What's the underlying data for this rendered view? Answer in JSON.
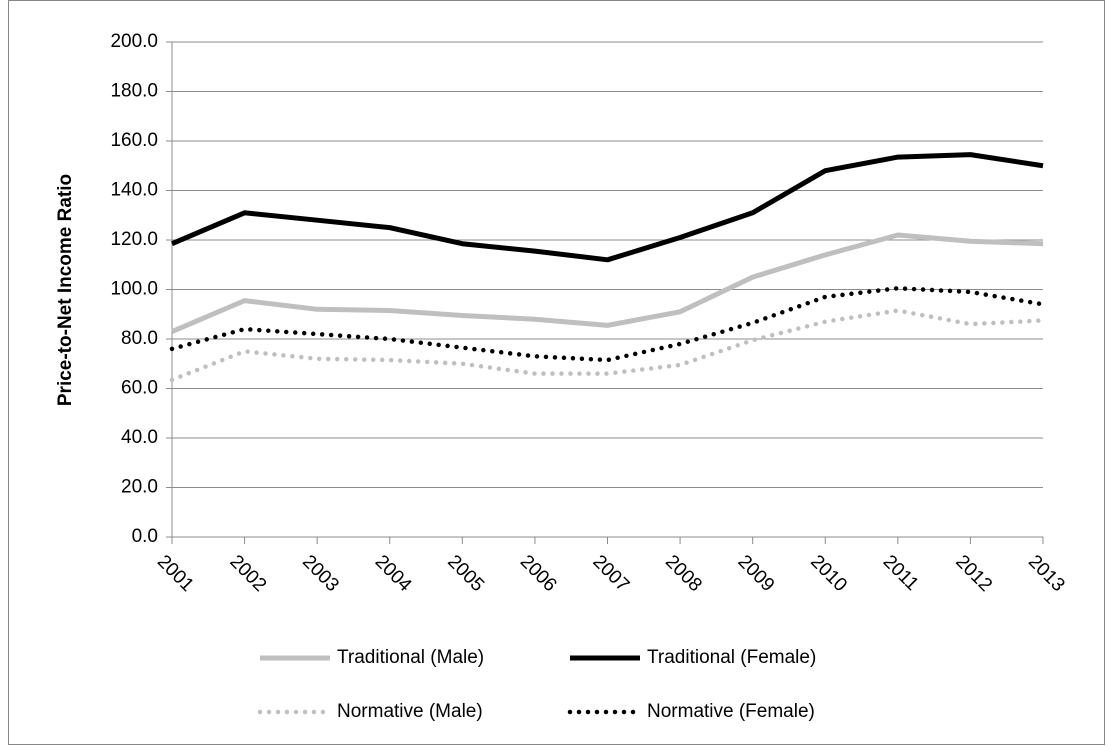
{
  "chart_data": {
    "type": "line",
    "y_label": "Price-to-Net Income Ratio",
    "categories": [
      "2001",
      "2002",
      "2003",
      "2004",
      "2005",
      "2006",
      "2007",
      "2008",
      "2009",
      "2010",
      "2011",
      "2012",
      "2013"
    ],
    "series": [
      {
        "name": "Traditional (Male)",
        "color": "#bfbfbf",
        "style": "solid",
        "values": [
          83,
          95.5,
          92,
          91.5,
          89.5,
          88,
          85.5,
          91,
          105,
          114,
          122,
          119.5,
          118.5
        ]
      },
      {
        "name": "Traditional (Female)",
        "color": "#000000",
        "style": "solid",
        "values": [
          118.5,
          131,
          128,
          125,
          118.5,
          115.5,
          112,
          121,
          131,
          148,
          153.5,
          154.5,
          150
        ]
      },
      {
        "name": "Normative (Male)",
        "color": "#bfbfbf",
        "style": "dotted",
        "values": [
          63.5,
          75,
          72,
          71.5,
          70,
          66,
          66,
          69.5,
          79.5,
          87,
          91.5,
          86,
          87.5
        ]
      },
      {
        "name": "Normative (Female)",
        "color": "#000000",
        "style": "dotted",
        "values": [
          76,
          84,
          82,
          80,
          76.5,
          73,
          71.5,
          78,
          86.5,
          97,
          100.5,
          99,
          94
        ]
      }
    ],
    "ylim": [
      0,
      200
    ],
    "yticks": [
      {
        "value": 0,
        "label": "0.0"
      },
      {
        "value": 20,
        "label": "20.0"
      },
      {
        "value": 40,
        "label": "40.0"
      },
      {
        "value": 60,
        "label": "60.0"
      },
      {
        "value": 80,
        "label": "80.0"
      },
      {
        "value": 100,
        "label": "100.0"
      },
      {
        "value": 120,
        "label": "120.0"
      },
      {
        "value": 140,
        "label": "140.0"
      },
      {
        "value": 160,
        "label": "160.0"
      },
      {
        "value": 180,
        "label": "180.0"
      },
      {
        "value": 200,
        "label": "200.0"
      }
    ],
    "grid": true,
    "legend": "bottom"
  }
}
